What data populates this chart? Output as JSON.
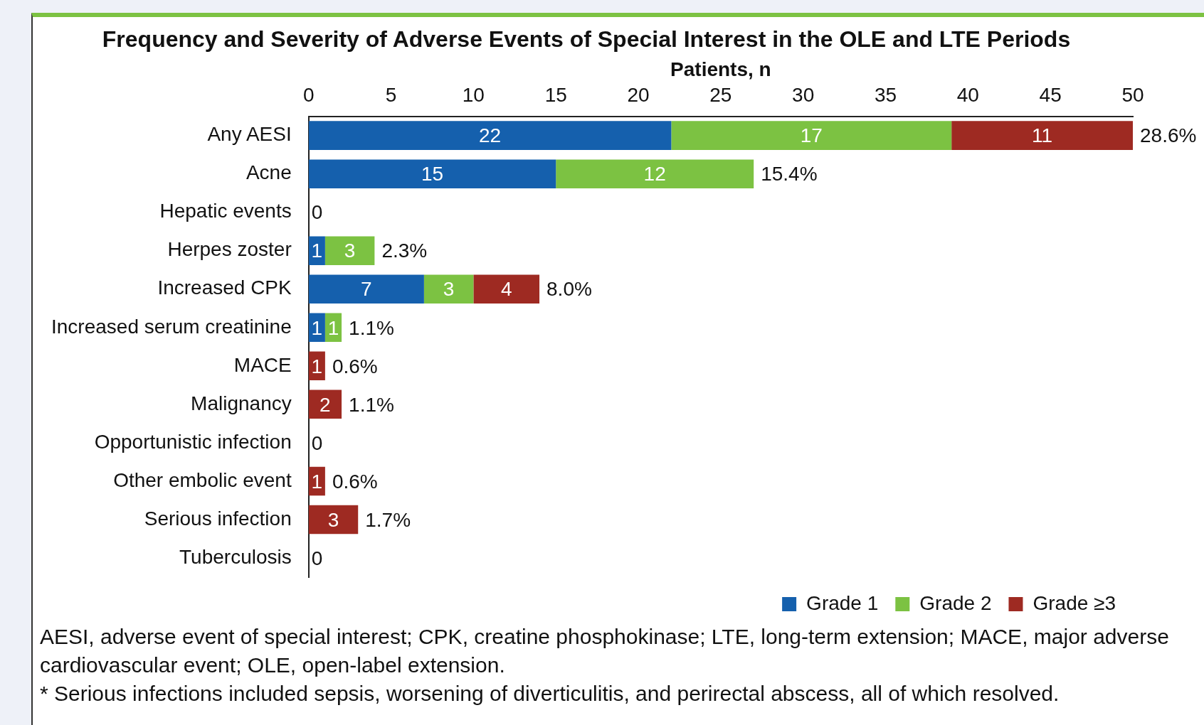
{
  "chart_data": {
    "type": "bar",
    "orientation": "horizontal",
    "stacked": true,
    "title": "Frequency and Severity of Adverse Events of Special Interest in the OLE and LTE Periods",
    "xlabel": "Patients, n",
    "categories": [
      "Any AESI",
      "Acne",
      "Hepatic events",
      "Herpes zoster",
      "Increased CPK",
      "Increased serum creatinine",
      "MACE",
      "Malignancy",
      "Opportunistic infection",
      "Other embolic event",
      "Serious infection",
      "Tuberculosis"
    ],
    "series": [
      {
        "name": "Grade 1",
        "color": "#1560ad",
        "values": [
          22,
          15,
          0,
          1,
          7,
          1,
          0,
          0,
          0,
          0,
          0,
          0
        ],
        "value_labels": [
          "22",
          "15",
          null,
          "1",
          "7",
          "1",
          null,
          null,
          null,
          null,
          null,
          null
        ]
      },
      {
        "name": "Grade 2",
        "color": "#7cc242",
        "values": [
          17,
          12,
          0,
          3,
          3,
          1,
          0,
          0,
          0,
          0,
          0,
          0
        ],
        "value_labels": [
          "17",
          "12",
          null,
          "3",
          "3",
          "1",
          null,
          null,
          null,
          null,
          null,
          null
        ]
      },
      {
        "name": "Grade ≥3",
        "color": "#9e2a22",
        "values": [
          11,
          0,
          0,
          0,
          4,
          0,
          1,
          2,
          0,
          1,
          3,
          0
        ],
        "value_labels": [
          "11",
          null,
          null,
          null,
          "4",
          null,
          "1",
          "2",
          null,
          "1",
          "3",
          null
        ]
      }
    ],
    "annotations": [
      {
        "text": "28.6%",
        "x": 50,
        "y": "Any AESI"
      },
      {
        "text": "15.4%",
        "x": 27,
        "y": "Acne"
      },
      {
        "text": "0",
        "x": 0,
        "y": "Hepatic events"
      },
      {
        "text": "2.3%",
        "x": 4,
        "y": "Herpes zoster"
      },
      {
        "text": "8.0%",
        "x": 14,
        "y": "Increased CPK"
      },
      {
        "text": "1.1%",
        "x": 2,
        "y": "Increased serum creatinine"
      },
      {
        "text": "0.6%",
        "x": 1,
        "y": "MACE"
      },
      {
        "text": "1.1%",
        "x": 2,
        "y": "Malignancy"
      },
      {
        "text": "0",
        "x": 0,
        "y": "Opportunistic infection"
      },
      {
        "text": "0.6%",
        "x": 1,
        "y": "Other embolic event"
      },
      {
        "text": "1.7%",
        "x": 3,
        "y": "Serious infection"
      },
      {
        "text": "0",
        "x": 0,
        "y": "Tuberculosis"
      },
      "AESI, adverse event of special interest; CPK, creatine phosphokinase; LTE, long-term extension; MACE, major adverse cardiovascular event; OLE, open-label extension.",
      "* Serious infections included sepsis, worsening of diverticulitis, and perirectal abscess, all of which resolved."
    ],
    "xlim": [
      0,
      50
    ],
    "xticks": [
      0,
      5,
      10,
      15,
      20,
      25,
      30,
      35,
      40,
      45,
      50
    ],
    "grid": false,
    "legend": "bottom right"
  }
}
